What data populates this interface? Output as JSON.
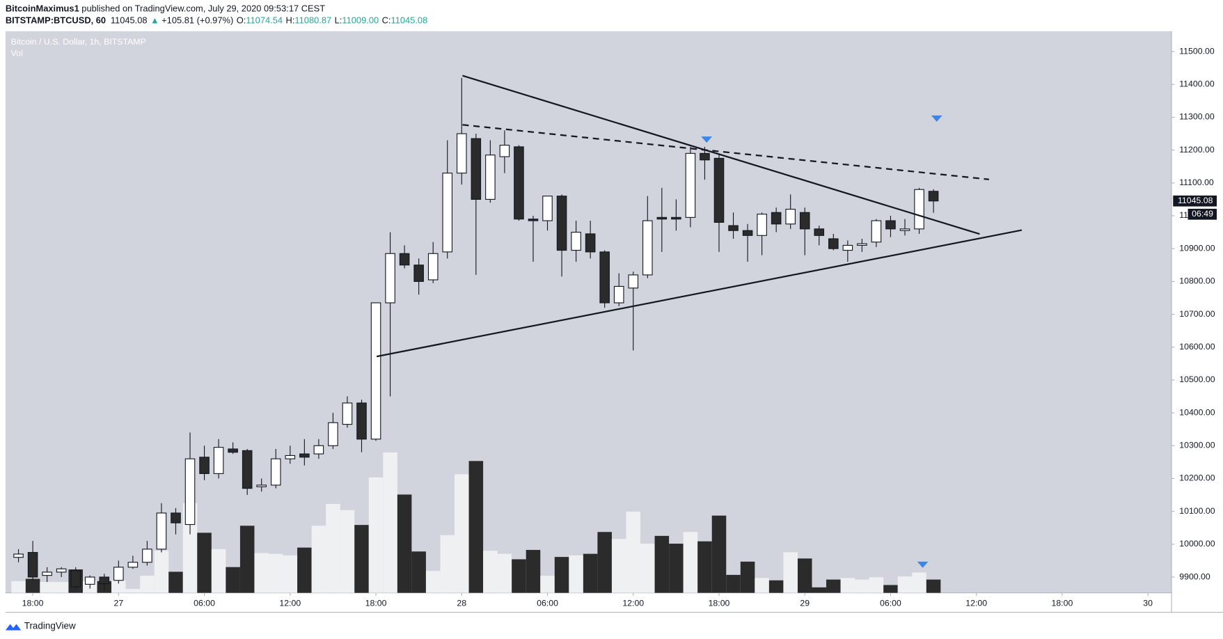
{
  "header": {
    "author": "BitcoinMaximus1",
    "published": " published on TradingView.com, July 29, 2020 09:53:17 CEST",
    "symbol": "BITSTAMP:BTCUSD, 60",
    "last": "11045.08",
    "arrow": "▲",
    "change": "+105.81 (+0.97%)",
    "o_label": "O:",
    "o": "11074.54",
    "h_label": "H:",
    "h": "11080.87",
    "l_label": "L:",
    "l": "11009.00",
    "c_label": "C:",
    "c": "11045.08"
  },
  "footer": {
    "brand": "TradingView"
  },
  "chart_data": {
    "type": "candlestick",
    "title": "Bitcoin / U.S. Dollar, 1h, BITSTAMP",
    "volume_label": "Vol",
    "categories": [
      null,
      "18:00",
      null,
      null,
      null,
      null,
      null,
      "27",
      null,
      null,
      null,
      null,
      null,
      "06:00",
      null,
      null,
      null,
      null,
      null,
      "12:00",
      null,
      null,
      null,
      null,
      null,
      "18:00",
      null,
      null,
      null,
      null,
      null,
      "28",
      null,
      null,
      null,
      null,
      null,
      "06:00",
      null,
      null,
      null,
      null,
      null,
      "12:00",
      null,
      null,
      null,
      null,
      null,
      "18:00",
      null,
      null,
      null,
      null,
      null,
      "29",
      null,
      null,
      null,
      null,
      null,
      "06:00",
      null,
      null,
      null
    ],
    "xticks_beyond_data": [
      "12:00",
      "18:00",
      "30"
    ],
    "open": [
      9960,
      9975,
      9905,
      9915,
      9920,
      9878,
      9900,
      9890,
      9930,
      9945,
      9985,
      10095,
      10060,
      10265,
      10215,
      10290,
      10285,
      10175,
      10180,
      10260,
      10275,
      10275,
      10300,
      10365,
      10430,
      10320,
      10735,
      10885,
      10850,
      10805,
      10890,
      11130,
      11235,
      11050,
      11180,
      11210,
      10990,
      10985,
      11060,
      10895,
      10945,
      10890,
      10735,
      10780,
      10820,
      10995,
      10995,
      10995,
      11190,
      11175,
      10970,
      10955,
      10940,
      11010,
      10975,
      11010,
      10960,
      10930,
      10895,
      10910,
      10920,
      10985,
      10955,
      10960,
      11074.54
    ],
    "high": [
      9985,
      10010,
      9930,
      9930,
      9930,
      9905,
      9910,
      9950,
      9965,
      10010,
      10125,
      10110,
      10340,
      10300,
      10320,
      10310,
      10290,
      10200,
      10290,
      10300,
      10320,
      10320,
      10400,
      10450,
      10440,
      10735,
      10950,
      10910,
      10870,
      10920,
      11230,
      11420,
      11250,
      11230,
      11260,
      11215,
      11000,
      11060,
      11065,
      10985,
      10985,
      10895,
      10825,
      10830,
      11060,
      11085,
      11050,
      11210,
      11210,
      11190,
      11010,
      10975,
      11010,
      11025,
      11065,
      11025,
      10970,
      10945,
      10925,
      10930,
      10990,
      11000,
      10990,
      11085,
      11080.87
    ],
    "low": [
      9945,
      9890,
      9885,
      9900,
      9865,
      9865,
      9860,
      9880,
      9925,
      9935,
      9975,
      10030,
      10030,
      10195,
      10200,
      10275,
      10150,
      10160,
      10170,
      10245,
      10240,
      10260,
      10290,
      10355,
      10280,
      10315,
      10450,
      10840,
      10760,
      10795,
      10870,
      11095,
      10820,
      11040,
      11130,
      10985,
      10860,
      10955,
      10815,
      10860,
      10870,
      10720,
      10725,
      10590,
      10810,
      10890,
      10955,
      10965,
      11110,
      10890,
      10930,
      10860,
      10880,
      10950,
      10960,
      10880,
      10910,
      10895,
      10860,
      10890,
      10905,
      10935,
      10940,
      10945,
      11009.0
    ],
    "close": [
      9970,
      9900,
      9915,
      9925,
      9870,
      9900,
      9880,
      9930,
      9945,
      9985,
      10095,
      10065,
      10260,
      10215,
      10295,
      10280,
      10170,
      10180,
      10260,
      10270,
      10265,
      10300,
      10370,
      10430,
      10320,
      10735,
      10885,
      10850,
      10800,
      10885,
      11130,
      11250,
      11050,
      11185,
      11215,
      10990,
      10985,
      11060,
      10895,
      10950,
      10890,
      10735,
      10785,
      10820,
      10985,
      10990,
      10990,
      11190,
      11170,
      10980,
      10955,
      10940,
      11005,
      10975,
      11020,
      10960,
      10940,
      10900,
      10910,
      10915,
      10985,
      10960,
      10960,
      11080,
      11045.08
    ],
    "volume": [
      15,
      18,
      14,
      14,
      30,
      15,
      15,
      16,
      5,
      22,
      54,
      27,
      115,
      77,
      56,
      33,
      86,
      51,
      50,
      48,
      58,
      86,
      114,
      106,
      87,
      148,
      180,
      126,
      53,
      28,
      74,
      152,
      169,
      54,
      50,
      43,
      55,
      22,
      46,
      48,
      50,
      78,
      69,
      104,
      63,
      73,
      63,
      78,
      66,
      99,
      23,
      40,
      19,
      16,
      52,
      44,
      7,
      17,
      19,
      17,
      20,
      10,
      21,
      26,
      17
    ],
    "up_color": "#ffffff",
    "down_color": "#2b2b2b",
    "volume_up_color": "#f4f4f6",
    "volume_down_color": "#2b2b2b",
    "ylim": [
      9852,
      11562
    ],
    "yticks": [
      {
        "value": 9900,
        "label": "9900.00"
      },
      {
        "value": 10000,
        "label": "10000.00"
      },
      {
        "value": 10100,
        "label": "10100.00"
      },
      {
        "value": 10200,
        "label": "10200.00"
      },
      {
        "value": 10300,
        "label": "10300.00"
      },
      {
        "value": 10400,
        "label": "10400.00"
      },
      {
        "value": 10500,
        "label": "10500.00"
      },
      {
        "value": 10600,
        "label": "10600.00"
      },
      {
        "value": 10700,
        "label": "10700.00"
      },
      {
        "value": 10800,
        "label": "10800.00"
      },
      {
        "value": 10900,
        "label": "10900.00"
      },
      {
        "value": 11000,
        "label": "11000.00"
      },
      {
        "value": 11100,
        "label": "11100.00"
      },
      {
        "value": 11200,
        "label": "11200.00"
      },
      {
        "value": 11300,
        "label": "11300.00"
      },
      {
        "value": 11400,
        "label": "11400.00"
      },
      {
        "value": 11500,
        "label": "11500.00"
      }
    ],
    "last_price": {
      "value": 11045.08,
      "label": "11045.08"
    },
    "countdown": "06:49",
    "grid": false
  }
}
